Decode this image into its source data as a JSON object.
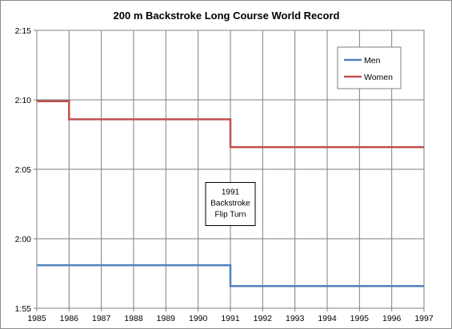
{
  "chart_data": {
    "type": "line",
    "step": true,
    "title": "200 m Backstroke Long Course World Record",
    "xlabel": "",
    "ylabel": "",
    "xlim": [
      1985,
      1997
    ],
    "ylim_seconds": [
      115,
      135
    ],
    "x_ticks": [
      "1985",
      "1986",
      "1987",
      "1988",
      "1989",
      "1990",
      "1991",
      "1992",
      "1993",
      "1994",
      "1995",
      "1996",
      "1997"
    ],
    "y_ticks": [
      {
        "label": "1:55",
        "seconds": 115
      },
      {
        "label": "2:00",
        "seconds": 120
      },
      {
        "label": "2:05",
        "seconds": 125
      },
      {
        "label": "2:10",
        "seconds": 130
      },
      {
        "label": "2:15",
        "seconds": 135
      }
    ],
    "grid": true,
    "legend_position": "top-right",
    "series": [
      {
        "name": "Men",
        "color": "#4f81bd",
        "points": [
          {
            "x": 1985,
            "y": 118.1
          },
          {
            "x": 1991,
            "y": 118.1
          },
          {
            "x": 1991,
            "y": 116.6
          },
          {
            "x": 1997,
            "y": 116.6
          }
        ]
      },
      {
        "name": "Women",
        "color": "#c0504d",
        "points": [
          {
            "x": 1985,
            "y": 129.9
          },
          {
            "x": 1986,
            "y": 129.9
          },
          {
            "x": 1986,
            "y": 128.6
          },
          {
            "x": 1991,
            "y": 128.6
          },
          {
            "x": 1991,
            "y": 126.6
          },
          {
            "x": 1997,
            "y": 126.6
          }
        ]
      }
    ],
    "annotations": [
      {
        "lines": [
          "1991",
          "Backstroke",
          "Flip Turn"
        ],
        "x": 1991,
        "y": 122.5
      }
    ]
  }
}
